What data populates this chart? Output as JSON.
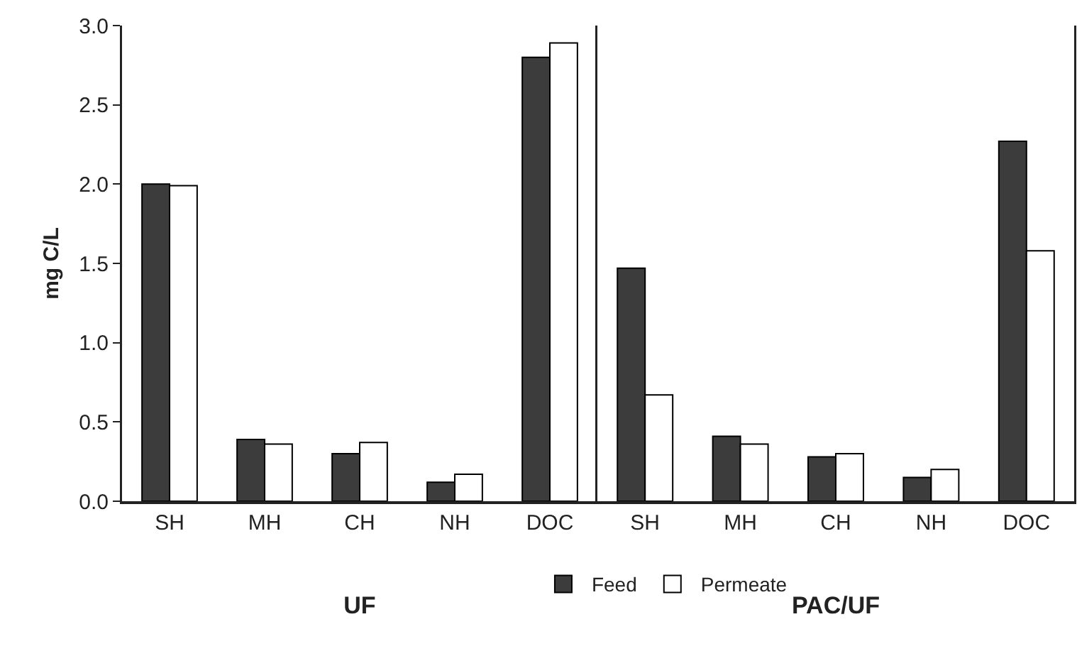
{
  "chart_data": [
    {
      "type": "bar",
      "xlabel": "UF",
      "ylabel": "mg C/L",
      "categories": [
        "SH",
        "MH",
        "CH",
        "NH",
        "DOC"
      ],
      "series": [
        {
          "name": "Feed",
          "color": "#3c3c3c",
          "values": [
            2.0,
            0.39,
            0.3,
            0.12,
            2.8
          ]
        },
        {
          "name": "Permeate",
          "color": "#ffffff",
          "values": [
            1.99,
            0.36,
            0.37,
            0.17,
            2.89
          ]
        }
      ],
      "ylim": [
        0,
        3
      ],
      "yticks": [
        {
          "value": 0,
          "label": "0.0"
        },
        {
          "value": 0.5,
          "label": "0.5"
        },
        {
          "value": 1,
          "label": "1.0"
        },
        {
          "value": 1.5,
          "label": "1.5"
        },
        {
          "value": 2,
          "label": "2.0"
        },
        {
          "value": 2.5,
          "label": "2.5"
        },
        {
          "value": 3,
          "label": "3.0"
        }
      ],
      "grid": false,
      "legend": "bottom right"
    },
    {
      "type": "bar",
      "xlabel": "PAC/UF",
      "categories": [
        "SH",
        "MH",
        "CH",
        "NH",
        "DOC"
      ],
      "series": [
        {
          "color": "#3c3c3c",
          "values": [
            1.47,
            0.41,
            0.28,
            0.15,
            2.27
          ]
        },
        {
          "color": "#ffffff",
          "values": [
            0.67,
            0.36,
            0.3,
            0.2,
            1.58
          ]
        }
      ],
      "ylim": [
        0,
        3
      ],
      "grid": false,
      "tick_labels": "x",
      "legend": false
    }
  ]
}
